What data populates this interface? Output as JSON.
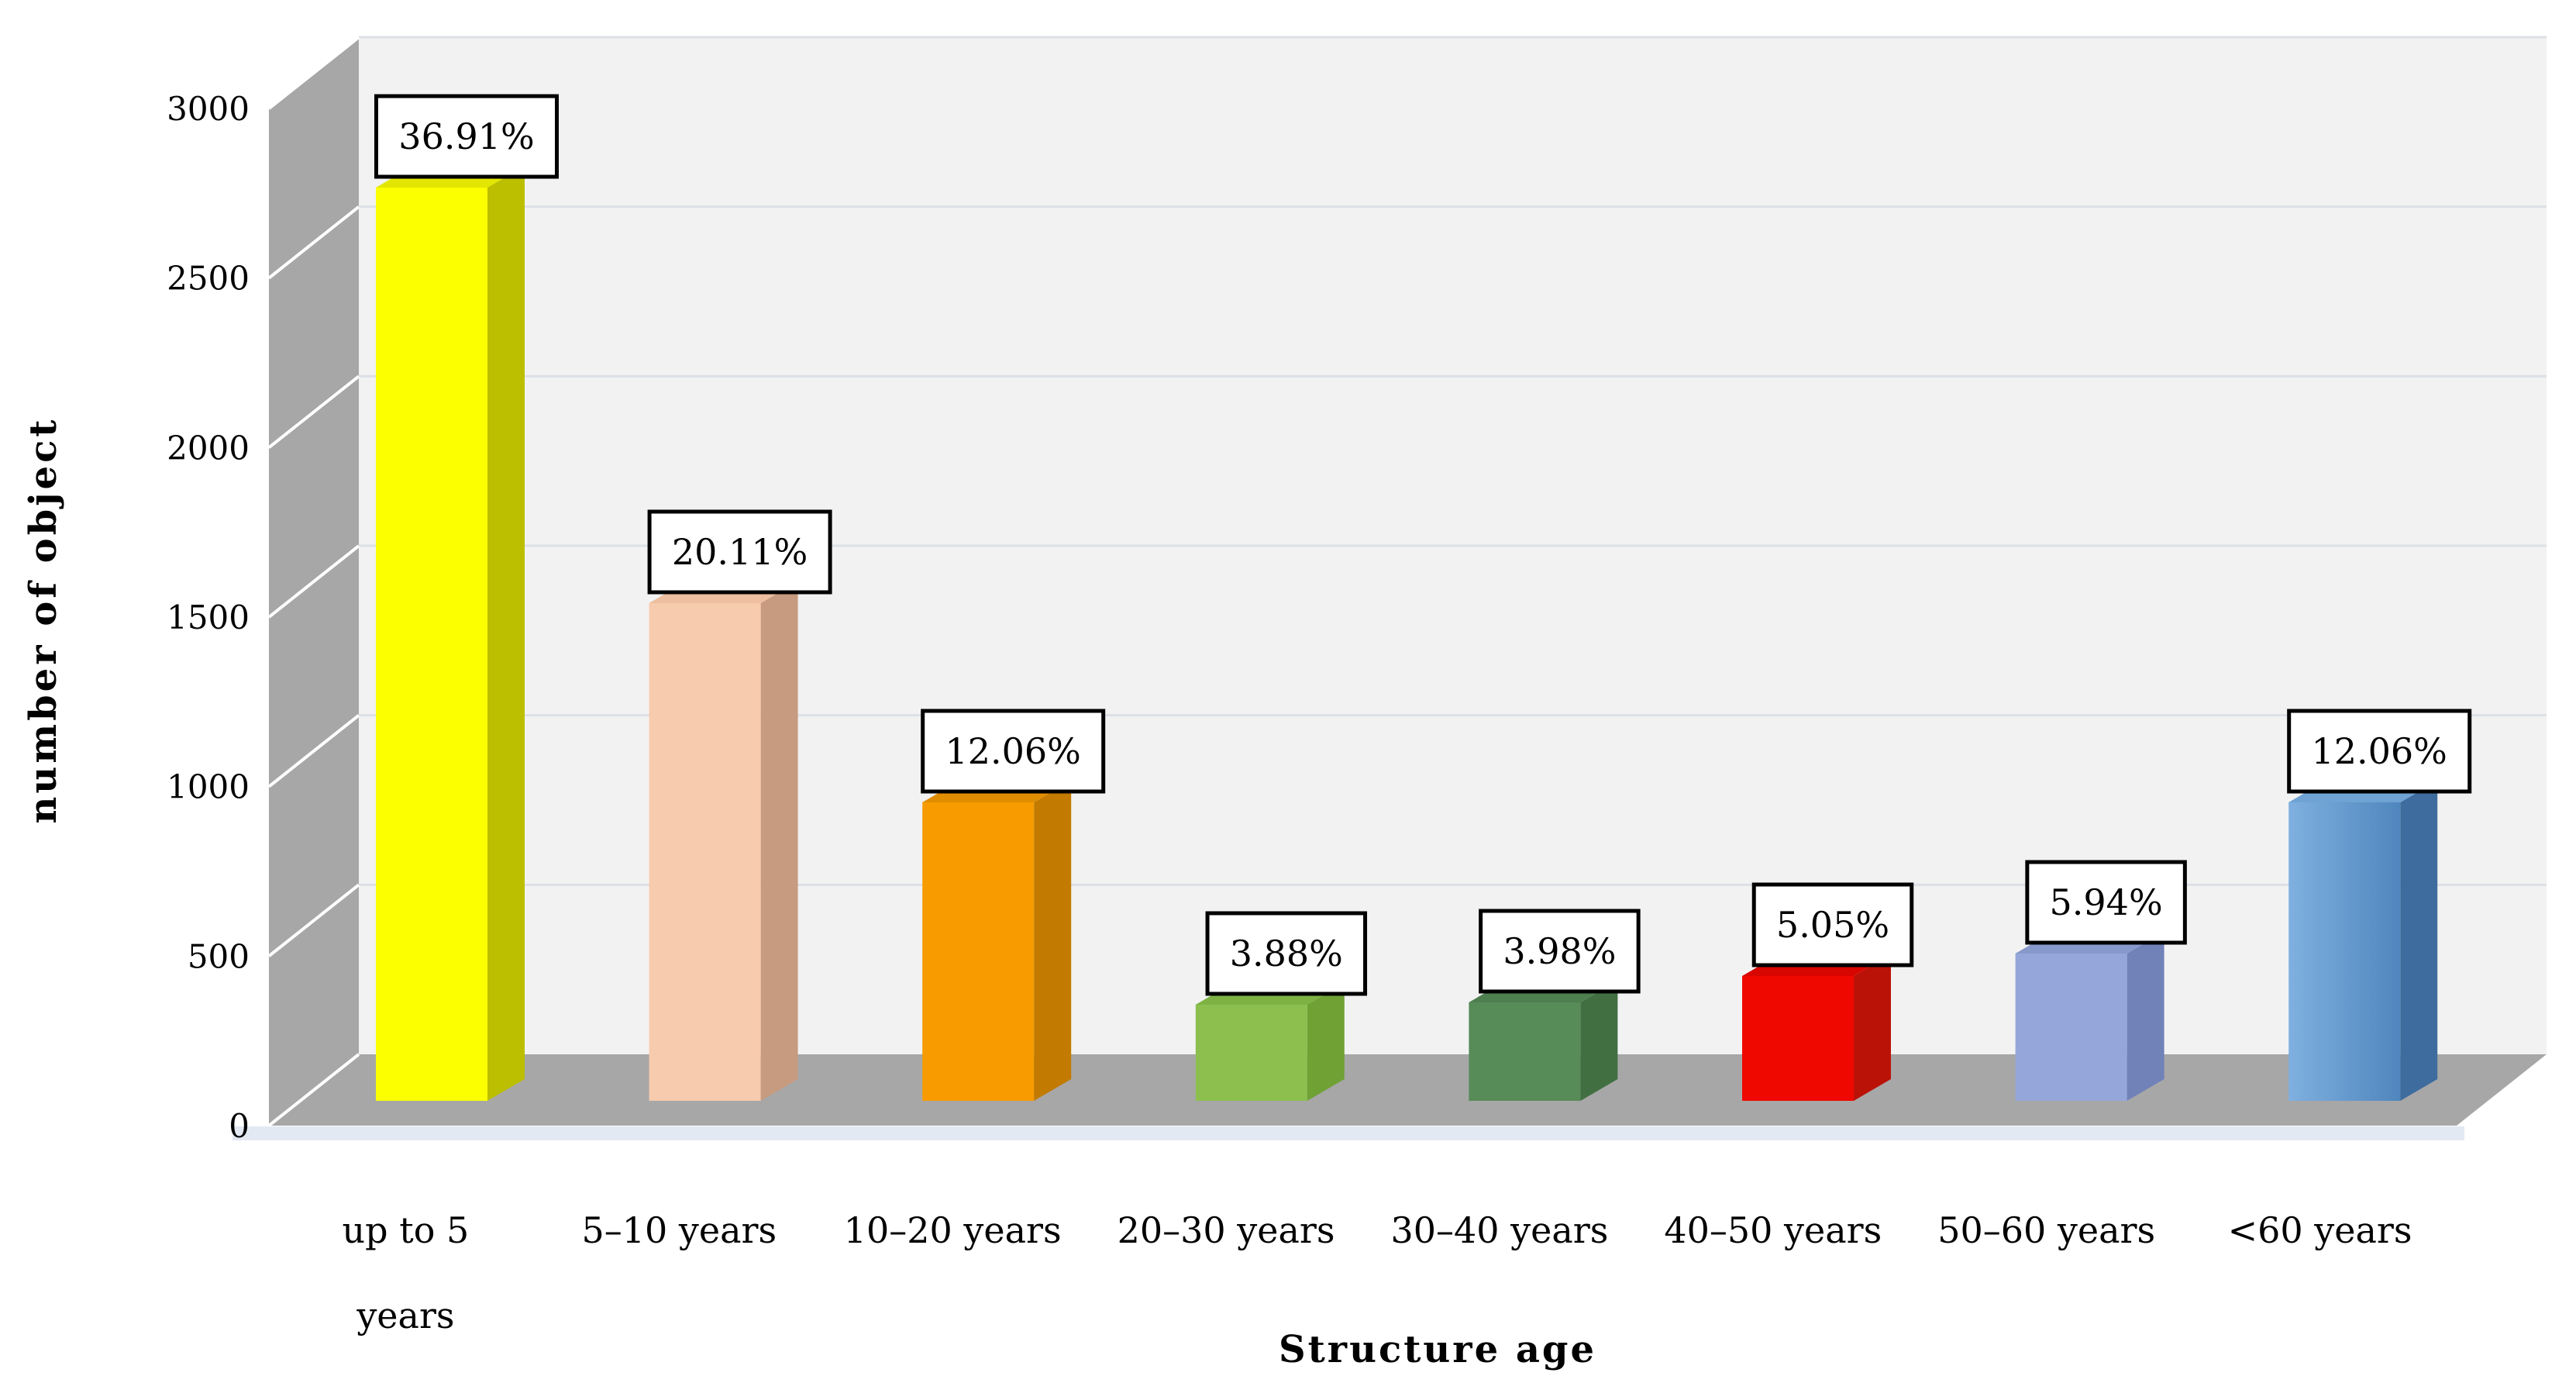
{
  "chart_data": {
    "type": "bar",
    "projection": "3d",
    "title": "",
    "xlabel": "Structure age",
    "ylabel": "number of object",
    "categories": [
      "up to 5\nyears",
      "5–10 years",
      "10–20 years",
      "20–30 years",
      "30–40 years",
      "40–50 years",
      "50–60 years",
      "<60 years"
    ],
    "bar_labels": [
      "36.91%",
      "20.11%",
      "12.06%",
      "3.88%",
      "3.98%",
      "5.05%",
      "5.94%",
      "12.06%"
    ],
    "percentages": [
      36.91,
      20.11,
      12.06,
      3.88,
      3.98,
      5.05,
      5.94,
      12.06
    ],
    "values_estimated": [
      2694,
      1468,
      880,
      283,
      291,
      369,
      434,
      880
    ],
    "ylim": [
      0,
      3000
    ],
    "yticks": [
      "0",
      "500",
      "1000",
      "1500",
      "2000",
      "2500",
      "3000"
    ],
    "ytick_values": [
      0,
      500,
      1000,
      1500,
      2000,
      2500,
      3000
    ],
    "grid": "on",
    "legend": "none",
    "colors": {
      "background": "#FFFFFF",
      "side_wall": "#A7A7A7",
      "floor": "#A7A7A7",
      "back_wall": "#F2F2F2",
      "back_wall_gridline": "#DCE0E6",
      "wall_gridline": "#FFFFFF",
      "floor_shadow": "#E3E9F3",
      "label_box_fill": "#FFFFFF",
      "label_box_border": "#000000",
      "text": "#000000"
    },
    "bar_colors": [
      {
        "front": "#FBFF00",
        "side": "#BCBE00",
        "top": "#E3E600"
      },
      {
        "front": "#F7CBAD",
        "side": "#C69B80",
        "top": "#EDBEA0"
      },
      {
        "front": "#F79B00",
        "side": "#C27A00",
        "top": "#E08D00"
      },
      {
        "front": "#8CBF4E",
        "side": "#6FA135",
        "top": "#7EB243"
      },
      {
        "front": "#578B58",
        "side": "#416F42",
        "top": "#4E7F4F"
      },
      {
        "front": "#EF0800",
        "side": "#BB1208",
        "top": "#D80600"
      },
      {
        "front": "#95A7DA",
        "side": "#7182B9",
        "top": "#8798CB"
      },
      {
        "front": "gradient",
        "gradient": [
          "#7FB0E0",
          "#4F86BD"
        ],
        "side": "#3E6C9E",
        "top": "#6FA3D4"
      }
    ]
  }
}
